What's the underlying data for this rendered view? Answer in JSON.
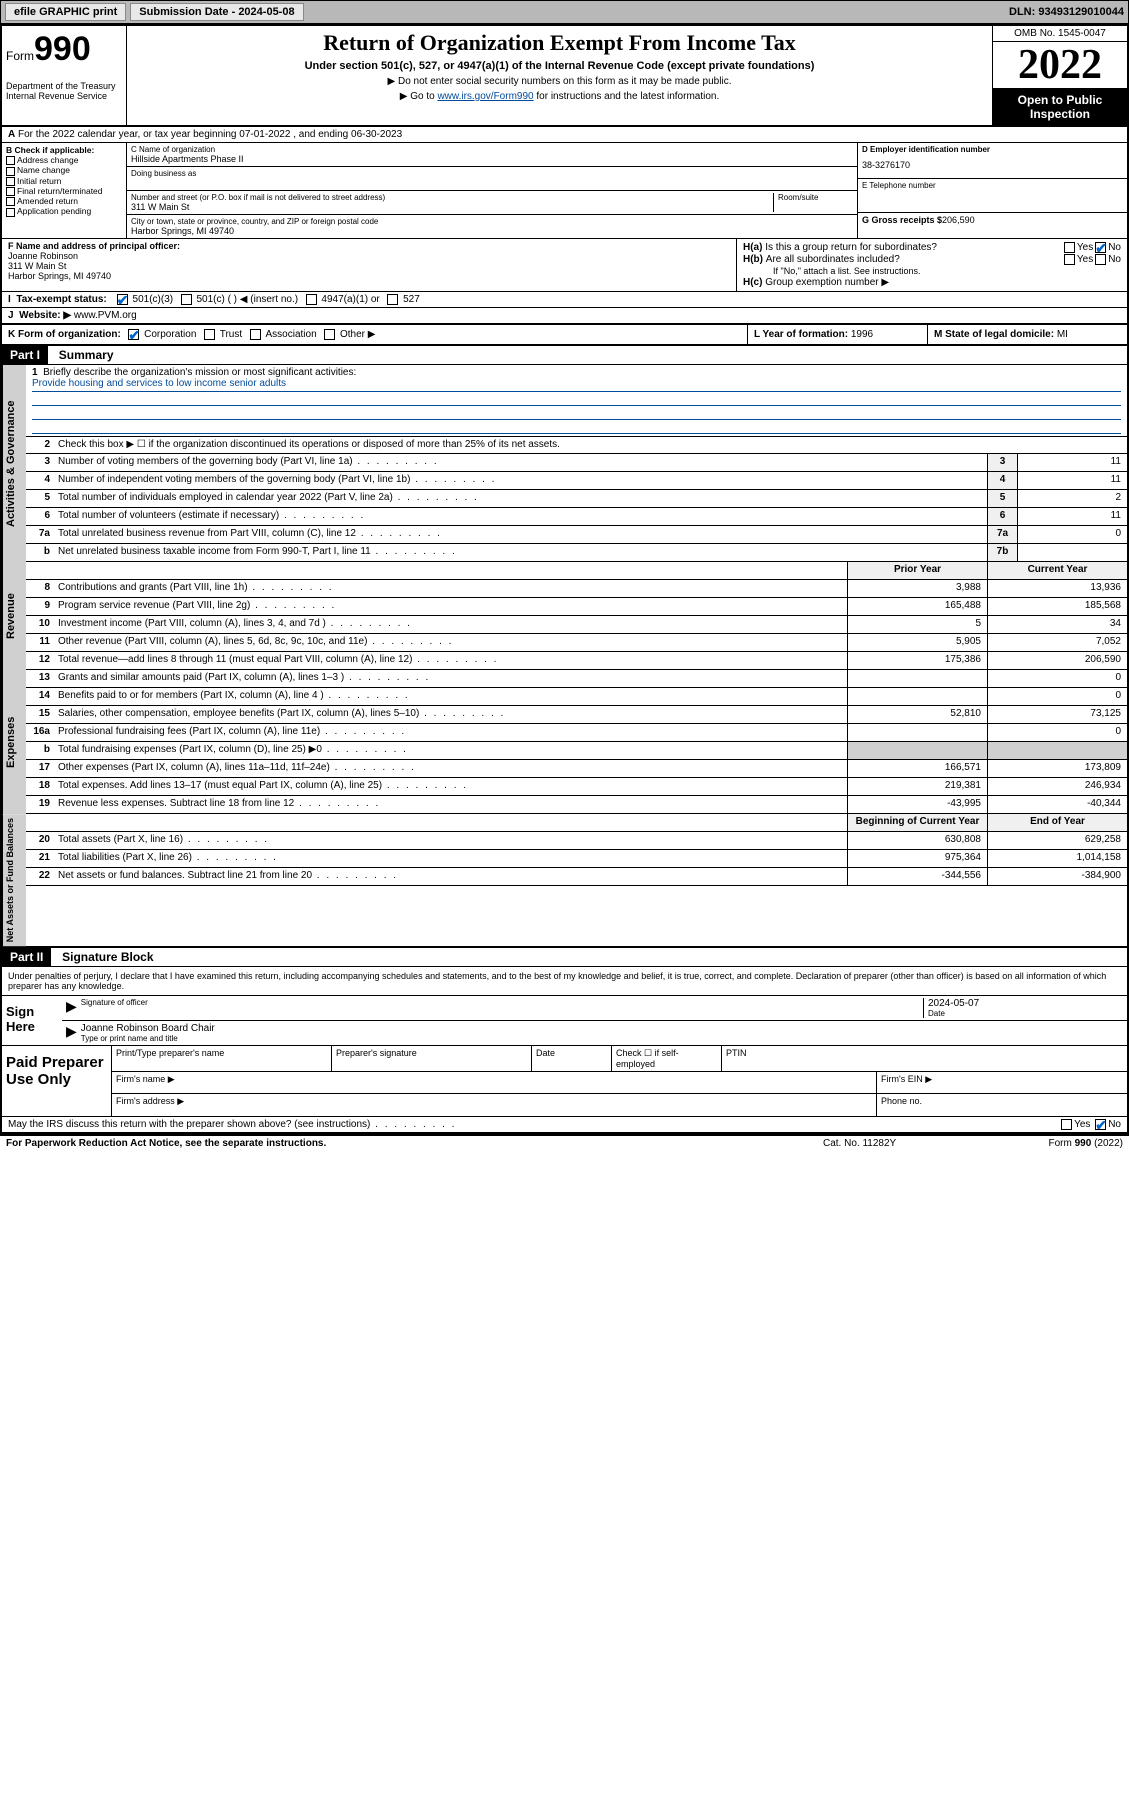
{
  "topbar": {
    "efile": "efile GRAPHIC print",
    "subdate_lbl": "Submission Date - 2024-05-08",
    "dln": "DLN: 93493129010044"
  },
  "header": {
    "form_prefix": "Form",
    "form_num": "990",
    "dept": "Department of the Treasury Internal Revenue Service",
    "title": "Return of Organization Exempt From Income Tax",
    "sub1": "Under section 501(c), 527, or 4947(a)(1) of the Internal Revenue Code (except private foundations)",
    "sub2": "▶ Do not enter social security numbers on this form as it may be made public.",
    "link_pre": "▶ Go to ",
    "link_url": "www.irs.gov/Form990",
    "link_post": " for instructions and the latest information.",
    "omb": "OMB No. 1545-0047",
    "year": "2022",
    "openpub": "Open to Public Inspection"
  },
  "rowA": {
    "text": "For the 2022 calendar year, or tax year beginning 07-01-2022    , and ending 06-30-2023"
  },
  "colB": {
    "lbl": "B Check if applicable:",
    "opts": [
      "Address change",
      "Name change",
      "Initial return",
      "Final return/terminated",
      "Amended return",
      "Application pending"
    ]
  },
  "colC": {
    "name_lbl": "C Name of organization",
    "name": "Hillside Apartments Phase II",
    "dba_lbl": "Doing business as",
    "addr_lbl": "Number and street (or P.O. box if mail is not delivered to street address)",
    "room_lbl": "Room/suite",
    "addr": "311 W Main St",
    "city_lbl": "City or town, state or province, country, and ZIP or foreign postal code",
    "city": "Harbor Springs, MI  49740"
  },
  "colD": {
    "ein_lbl": "D Employer identification number",
    "ein": "38-3276170",
    "tel_lbl": "E Telephone number",
    "gross_lbl": "G Gross receipts $",
    "gross": "206,590"
  },
  "colF": {
    "lbl": "F  Name and address of principal officer:",
    "name": "Joanne Robinson",
    "addr": "311 W Main St",
    "city": "Harbor Springs, MI  49740"
  },
  "colH": {
    "ha": "Is this a group return for subordinates?",
    "hb": "Are all subordinates included?",
    "hb_note": "If \"No,\" attach a list. See instructions.",
    "hc": "Group exemption number ▶",
    "yes": "Yes",
    "no": "No"
  },
  "rowI": {
    "lbl": "Tax-exempt status:",
    "opts": [
      "501(c)(3)",
      "501(c) (   ) ◀ (insert no.)",
      "4947(a)(1) or",
      "527"
    ]
  },
  "rowJ": {
    "lbl": "Website: ▶",
    "val": "www.PVM.org"
  },
  "rowK": {
    "lbl": "K Form of organization:",
    "opts": [
      "Corporation",
      "Trust",
      "Association",
      "Other ▶"
    ],
    "year_lbl": "L Year of formation:",
    "year": "1996",
    "state_lbl": "M State of legal domicile:",
    "state": "MI"
  },
  "part1": {
    "hdr": "Part I",
    "title": "Summary"
  },
  "mission": {
    "num": "1",
    "lbl": "Briefly describe the organization's mission or most significant activities:",
    "text": "Provide housing and services to low income senior adults"
  },
  "line2": {
    "num": "2",
    "text": "Check this box ▶ ☐  if the organization discontinued its operations or disposed of more than 25% of its net assets."
  },
  "gov_rows": [
    {
      "n": "3",
      "d": "Number of voting members of the governing body (Part VI, line 1a)",
      "b": "3",
      "v": "11"
    },
    {
      "n": "4",
      "d": "Number of independent voting members of the governing body (Part VI, line 1b)",
      "b": "4",
      "v": "11"
    },
    {
      "n": "5",
      "d": "Total number of individuals employed in calendar year 2022 (Part V, line 2a)",
      "b": "5",
      "v": "2"
    },
    {
      "n": "6",
      "d": "Total number of volunteers (estimate if necessary)",
      "b": "6",
      "v": "11"
    },
    {
      "n": "7a",
      "d": "Total unrelated business revenue from Part VIII, column (C), line 12",
      "b": "7a",
      "v": "0"
    },
    {
      "n": "b",
      "d": "Net unrelated business taxable income from Form 990-T, Part I, line 11",
      "b": "7b",
      "v": ""
    }
  ],
  "rev_hdr": {
    "prior": "Prior Year",
    "curr": "Current Year"
  },
  "rev_rows": [
    {
      "n": "8",
      "d": "Contributions and grants (Part VIII, line 1h)",
      "p": "3,988",
      "c": "13,936"
    },
    {
      "n": "9",
      "d": "Program service revenue (Part VIII, line 2g)",
      "p": "165,488",
      "c": "185,568"
    },
    {
      "n": "10",
      "d": "Investment income (Part VIII, column (A), lines 3, 4, and 7d )",
      "p": "5",
      "c": "34"
    },
    {
      "n": "11",
      "d": "Other revenue (Part VIII, column (A), lines 5, 6d, 8c, 9c, 10c, and 11e)",
      "p": "5,905",
      "c": "7,052"
    },
    {
      "n": "12",
      "d": "Total revenue—add lines 8 through 11 (must equal Part VIII, column (A), line 12)",
      "p": "175,386",
      "c": "206,590"
    }
  ],
  "exp_rows": [
    {
      "n": "13",
      "d": "Grants and similar amounts paid (Part IX, column (A), lines 1–3 )",
      "p": "",
      "c": "0"
    },
    {
      "n": "14",
      "d": "Benefits paid to or for members (Part IX, column (A), line 4 )",
      "p": "",
      "c": "0"
    },
    {
      "n": "15",
      "d": "Salaries, other compensation, employee benefits (Part IX, column (A), lines 5–10)",
      "p": "52,810",
      "c": "73,125"
    },
    {
      "n": "16a",
      "d": "Professional fundraising fees (Part IX, column (A), line 11e)",
      "p": "",
      "c": "0"
    },
    {
      "n": "b",
      "d": "Total fundraising expenses (Part IX, column (D), line 25) ▶0",
      "p": "—",
      "c": "—"
    },
    {
      "n": "17",
      "d": "Other expenses (Part IX, column (A), lines 11a–11d, 11f–24e)",
      "p": "166,571",
      "c": "173,809"
    },
    {
      "n": "18",
      "d": "Total expenses. Add lines 13–17 (must equal Part IX, column (A), line 25)",
      "p": "219,381",
      "c": "246,934"
    },
    {
      "n": "19",
      "d": "Revenue less expenses. Subtract line 18 from line 12",
      "p": "-43,995",
      "c": "-40,344"
    }
  ],
  "na_hdr": {
    "beg": "Beginning of Current Year",
    "end": "End of Year"
  },
  "na_rows": [
    {
      "n": "20",
      "d": "Total assets (Part X, line 16)",
      "p": "630,808",
      "c": "629,258"
    },
    {
      "n": "21",
      "d": "Total liabilities (Part X, line 26)",
      "p": "975,364",
      "c": "1,014,158"
    },
    {
      "n": "22",
      "d": "Net assets or fund balances. Subtract line 21 from line 20",
      "p": "-344,556",
      "c": "-384,900"
    }
  ],
  "part2": {
    "hdr": "Part II",
    "title": "Signature Block",
    "decl": "Under penalties of perjury, I declare that I have examined this return, including accompanying schedules and statements, and to the best of my knowledge and belief, it is true, correct, and complete. Declaration of preparer (other than officer) is based on all information of which preparer has any knowledge."
  },
  "sign": {
    "here": "Sign Here",
    "sig_lbl": "Signature of officer",
    "date_lbl": "Date",
    "date": "2024-05-07",
    "name": "Joanne Robinson  Board Chair",
    "name_lbl": "Type or print name and title"
  },
  "paid": {
    "lbl": "Paid Preparer Use Only",
    "c1": "Print/Type preparer's name",
    "c2": "Preparer's signature",
    "c3": "Date",
    "c4": "Check ☐ if self-employed",
    "c5": "PTIN",
    "firm_name": "Firm's name   ▶",
    "firm_ein": "Firm's EIN ▶",
    "firm_addr": "Firm's address ▶",
    "phone": "Phone no."
  },
  "discuss": {
    "text": "May the IRS discuss this return with the preparer shown above? (see instructions)",
    "yes": "Yes",
    "no": "No"
  },
  "footer": {
    "left": "For Paperwork Reduction Act Notice, see the separate instructions.",
    "mid": "Cat. No. 11282Y",
    "right": "Form 990 (2022)"
  },
  "side_labels": {
    "gov": "Activities & Governance",
    "rev": "Revenue",
    "exp": "Expenses",
    "na": "Net Assets or Fund Balances"
  }
}
